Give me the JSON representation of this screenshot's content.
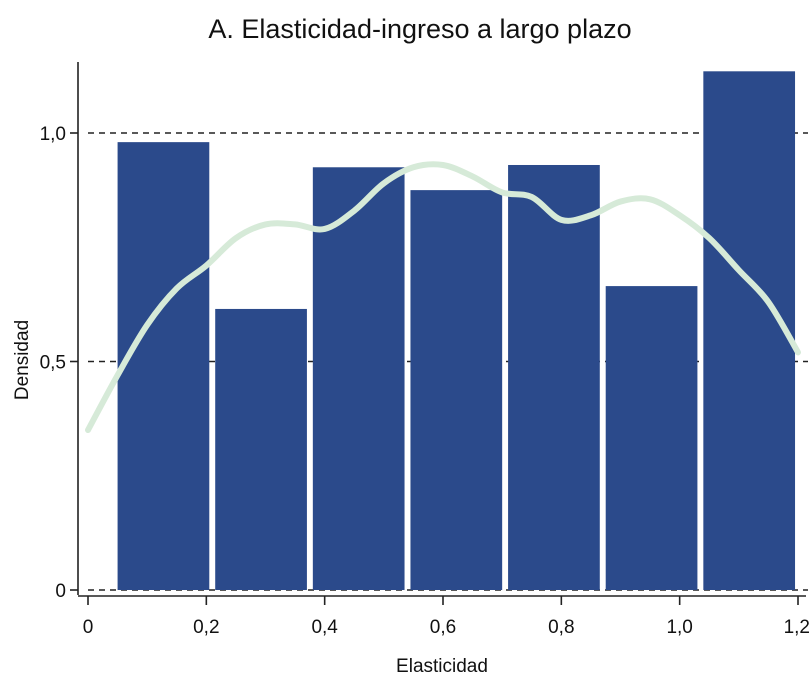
{
  "chart_data": {
    "type": "bar",
    "title": "A. Elasticidad-ingreso a largo plazo",
    "xlabel": "Elasticidad",
    "ylabel": "Densidad",
    "xlim": [
      0,
      1.2
    ],
    "ylim": [
      0,
      1.0
    ],
    "xticks": [
      {
        "value": 0,
        "label": "0"
      },
      {
        "value": 0.2,
        "label": "0,2"
      },
      {
        "value": 0.4,
        "label": "0,4"
      },
      {
        "value": 0.6,
        "label": "0,6"
      },
      {
        "value": 0.8,
        "label": "0,8"
      },
      {
        "value": 1.0,
        "label": "1,0"
      },
      {
        "value": 1.2,
        "label": "1,2"
      }
    ],
    "yticks": [
      {
        "value": 0,
        "label": "0"
      },
      {
        "value": 0.5,
        "label": "0,5"
      },
      {
        "value": 1.0,
        "label": "1,0"
      }
    ],
    "grid": "horizontal dashed at y ticks",
    "bars": [
      {
        "x0": 0.05,
        "x1": 0.205,
        "value": 0.98
      },
      {
        "x0": 0.215,
        "x1": 0.37,
        "value": 0.615
      },
      {
        "x0": 0.38,
        "x1": 0.535,
        "value": 0.925
      },
      {
        "x0": 0.545,
        "x1": 0.7,
        "value": 0.875
      },
      {
        "x0": 0.71,
        "x1": 0.865,
        "value": 0.93
      },
      {
        "x0": 0.875,
        "x1": 1.03,
        "value": 0.665
      },
      {
        "x0": 1.04,
        "x1": 1.195,
        "value": 1.135
      }
    ],
    "density_curve": {
      "x": [
        0,
        0.05,
        0.1,
        0.15,
        0.2,
        0.25,
        0.3,
        0.35,
        0.4,
        0.45,
        0.5,
        0.55,
        0.6,
        0.65,
        0.7,
        0.75,
        0.8,
        0.85,
        0.9,
        0.95,
        1.0,
        1.05,
        1.1,
        1.15,
        1.2
      ],
      "y": [
        0.35,
        0.47,
        0.58,
        0.66,
        0.71,
        0.77,
        0.8,
        0.8,
        0.79,
        0.83,
        0.89,
        0.925,
        0.93,
        0.905,
        0.87,
        0.86,
        0.81,
        0.82,
        0.85,
        0.855,
        0.82,
        0.77,
        0.7,
        0.63,
        0.52
      ]
    },
    "colors": {
      "bar": "#2b4a8b",
      "curve": "#d6ead8",
      "grid": "#222222",
      "axis": "#222222"
    }
  }
}
